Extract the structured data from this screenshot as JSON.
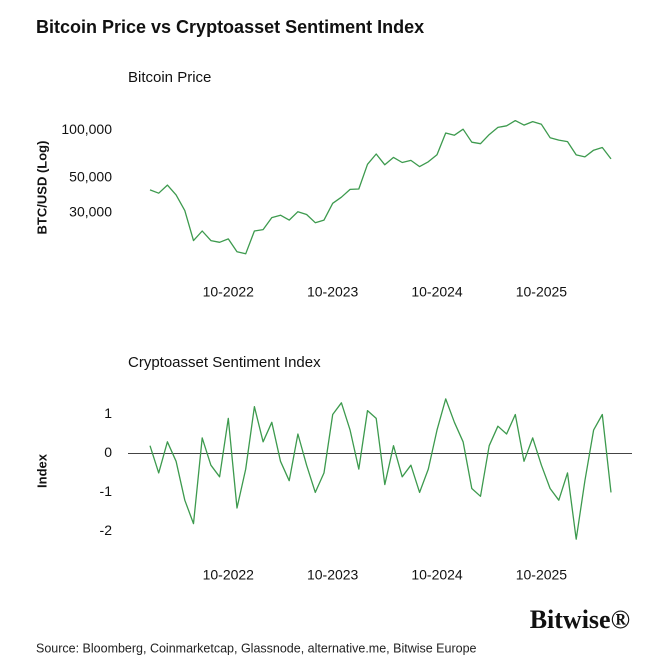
{
  "header": {
    "title": "Bitcoin Price vs Cryptoasset Sentiment Index"
  },
  "footer": {
    "source": "Source: Bloomberg, Coinmarketcap, Glassnode, alternative.me, Bitwise Europe",
    "logo": "Bitwise®"
  },
  "chart_data": [
    {
      "type": "line",
      "title": "Bitcoin Price",
      "y_label": "BTC/USD (Log)",
      "log_scale": true,
      "color": "#3d9a4e",
      "x": [
        "01-2022",
        "02-2022",
        "03-2022",
        "04-2022",
        "05-2022",
        "06-2022",
        "07-2022",
        "08-2022",
        "09-2022",
        "10-2022",
        "11-2022",
        "12-2022",
        "01-2023",
        "02-2023",
        "03-2023",
        "04-2023",
        "05-2023",
        "06-2023",
        "07-2023",
        "08-2023",
        "09-2023",
        "10-2023",
        "11-2023",
        "12-2023",
        "01-2024",
        "02-2024",
        "03-2024",
        "04-2024",
        "05-2024",
        "06-2024",
        "07-2024",
        "08-2024",
        "09-2024",
        "10-2024",
        "11-2024",
        "12-2024",
        "01-2025",
        "02-2025",
        "03-2025",
        "04-2025",
        "05-2025",
        "06-2025",
        "07-2025",
        "08-2025",
        "09-2025",
        "10-2025",
        "11-2025",
        "12-2025",
        "01-2026",
        "02-2026",
        "03-2026",
        "04-2026",
        "05-2026",
        "06-2026"
      ],
      "values": [
        42000,
        40000,
        45000,
        39000,
        31000,
        20000,
        23000,
        20000,
        19500,
        20500,
        17000,
        16500,
        23000,
        23500,
        28000,
        29000,
        27000,
        30500,
        29300,
        26000,
        27000,
        34500,
        37700,
        42300,
        42500,
        61000,
        71000,
        60600,
        67500,
        62700,
        64600,
        59000,
        63300,
        70200,
        96400,
        93400,
        102000,
        84300,
        82500,
        94200,
        104600,
        107100,
        115700,
        108200,
        114000,
        109500,
        90000,
        87000,
        85000,
        70000,
        68000,
        75000,
        78000,
        66000
      ],
      "ylim": [
        14000,
        135000
      ],
      "yticks": [
        {
          "value": 30000,
          "label": "30,000"
        },
        {
          "value": 50000,
          "label": "50,000"
        },
        {
          "value": 100000,
          "label": "100,000"
        }
      ],
      "xticks": [
        "10-2022",
        "10-2023",
        "10-2024",
        "10-2025"
      ]
    },
    {
      "type": "line",
      "title": "Cryptoasset Sentiment Index",
      "y_label": "Index",
      "log_scale": false,
      "zero_line": true,
      "color": "#3d9a4e",
      "x": [
        "01-2022",
        "02-2022",
        "03-2022",
        "04-2022",
        "05-2022",
        "06-2022",
        "07-2022",
        "08-2022",
        "09-2022",
        "10-2022",
        "11-2022",
        "12-2022",
        "01-2023",
        "02-2023",
        "03-2023",
        "04-2023",
        "05-2023",
        "06-2023",
        "07-2023",
        "08-2023",
        "09-2023",
        "10-2023",
        "11-2023",
        "12-2023",
        "01-2024",
        "02-2024",
        "03-2024",
        "04-2024",
        "05-2024",
        "06-2024",
        "07-2024",
        "08-2024",
        "09-2024",
        "10-2024",
        "11-2024",
        "12-2024",
        "01-2025",
        "02-2025",
        "03-2025",
        "04-2025",
        "05-2025",
        "06-2025",
        "07-2025",
        "08-2025",
        "09-2025",
        "10-2025",
        "11-2025",
        "12-2025",
        "01-2026",
        "02-2026",
        "03-2026",
        "04-2026",
        "05-2026",
        "06-2026"
      ],
      "values": [
        0.2,
        -0.5,
        0.3,
        -0.2,
        -1.2,
        -1.8,
        0.4,
        -0.3,
        -0.6,
        0.9,
        -1.4,
        -0.4,
        1.2,
        0.3,
        0.8,
        -0.2,
        -0.7,
        0.5,
        -0.3,
        -1.0,
        -0.5,
        1.0,
        1.3,
        0.6,
        -0.4,
        1.1,
        0.9,
        -0.8,
        0.2,
        -0.6,
        -0.3,
        -1.0,
        -0.4,
        0.6,
        1.4,
        0.8,
        0.3,
        -0.9,
        -1.1,
        0.2,
        0.7,
        0.5,
        1.0,
        -0.2,
        0.4,
        -0.3,
        -0.9,
        -1.2,
        -0.5,
        -2.2,
        -0.7,
        0.6,
        1.0,
        -1.0
      ],
      "ylim": [
        -2.4,
        1.5
      ],
      "yticks": [
        -2,
        -1,
        0,
        1
      ],
      "xticks": [
        "10-2022",
        "10-2023",
        "10-2024",
        "10-2025"
      ]
    }
  ]
}
